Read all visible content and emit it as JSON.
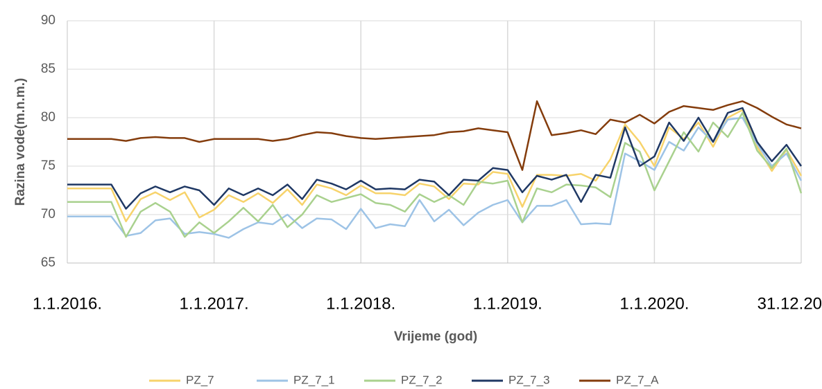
{
  "chart_data": {
    "type": "line",
    "xlabel": "Vrijeme (god)",
    "ylabel": "Razina vode(m.n.m.)",
    "xlim": [
      2016,
      2021
    ],
    "xticks": [
      {
        "value": 2016,
        "label": "1.1.2016."
      },
      {
        "value": 2017,
        "label": "1.1.2017."
      },
      {
        "value": 2018,
        "label": "1.1.2018."
      },
      {
        "value": 2019,
        "label": "1.1.2019."
      },
      {
        "value": 2020,
        "label": "1.1.2020."
      },
      {
        "value": 2021,
        "label": "31.12.2020."
      }
    ],
    "ylim": [
      65,
      90
    ],
    "yticks": [
      65,
      70,
      75,
      80,
      85,
      90
    ],
    "grid": true,
    "legend": "bottom",
    "x": [
      2016,
      2016.1,
      2016.2,
      2016.3,
      2016.4,
      2016.5,
      2016.6,
      2016.7,
      2016.8,
      2016.9,
      2017,
      2017.1,
      2017.2,
      2017.3,
      2017.4,
      2017.5,
      2017.6,
      2017.7,
      2017.8,
      2017.9,
      2018,
      2018.1,
      2018.2,
      2018.3,
      2018.4,
      2018.5,
      2018.6,
      2018.7,
      2018.8,
      2018.9,
      2019,
      2019.1,
      2019.2,
      2019.3,
      2019.4,
      2019.5,
      2019.6,
      2019.7,
      2019.8,
      2019.9,
      2020,
      2020.1,
      2020.2,
      2020.3,
      2020.4,
      2020.5,
      2020.6,
      2020.7,
      2020.8,
      2020.9,
      2021
    ],
    "series": [
      {
        "name": "PZ_7",
        "color": "#f7d36b",
        "values": [
          72.7,
          72.7,
          72.7,
          72.7,
          69.3,
          71.6,
          72.3,
          71.5,
          72.3,
          69.7,
          70.5,
          72.0,
          71.3,
          72.2,
          71.2,
          72.6,
          71.0,
          73.1,
          72.7,
          72.0,
          73.0,
          72.2,
          72.2,
          72.0,
          73.2,
          72.9,
          71.6,
          73.2,
          73.1,
          74.4,
          74.2,
          70.8,
          74.1,
          74.1,
          74.0,
          74.2,
          73.5,
          75.7,
          79.3,
          77.5,
          75.0,
          79.0,
          77.8,
          79.5,
          77.0,
          80.0,
          80.8,
          77.0,
          74.5,
          76.7,
          74.0
        ]
      },
      {
        "name": "PZ_7_1",
        "color": "#9dc3e6",
        "values": [
          69.8,
          69.8,
          69.8,
          69.8,
          67.8,
          68.1,
          69.4,
          69.6,
          68.0,
          68.2,
          68.0,
          67.6,
          68.5,
          69.2,
          69.0,
          70.0,
          68.6,
          69.6,
          69.5,
          68.5,
          70.6,
          68.6,
          69.0,
          68.8,
          71.5,
          69.3,
          70.5,
          68.9,
          70.2,
          71.0,
          71.5,
          69.2,
          70.9,
          70.9,
          71.5,
          69.0,
          69.1,
          69.0,
          76.3,
          75.5,
          74.6,
          77.5,
          76.6,
          79.0,
          77.5,
          79.8,
          80.0,
          77.3,
          75.0,
          76.3,
          73.5
        ]
      },
      {
        "name": "PZ_7_2",
        "color": "#a9d18e",
        "values": [
          71.3,
          71.3,
          71.3,
          71.3,
          67.7,
          70.3,
          71.2,
          70.3,
          67.7,
          69.2,
          68.1,
          69.3,
          70.7,
          69.3,
          71.0,
          68.7,
          70.0,
          72.0,
          71.3,
          71.7,
          72.1,
          71.2,
          71.0,
          70.3,
          72.1,
          71.3,
          72.0,
          71.0,
          73.4,
          73.2,
          73.5,
          69.2,
          72.7,
          72.3,
          73.1,
          73.0,
          72.8,
          71.8,
          77.4,
          76.5,
          72.5,
          75.5,
          78.5,
          76.5,
          79.5,
          78.0,
          80.5,
          76.6,
          74.8,
          76.8,
          72.2
        ]
      },
      {
        "name": "PZ_7_3",
        "color": "#1f3864",
        "values": [
          73.1,
          73.1,
          73.1,
          73.1,
          70.6,
          72.2,
          72.9,
          72.3,
          72.9,
          72.5,
          71.0,
          72.7,
          72.0,
          72.7,
          72.0,
          73.1,
          71.6,
          73.6,
          73.2,
          72.6,
          73.5,
          72.6,
          72.7,
          72.6,
          73.6,
          73.4,
          72.0,
          73.6,
          73.5,
          74.8,
          74.6,
          72.3,
          74.0,
          73.6,
          74.1,
          71.3,
          74.1,
          73.8,
          79.0,
          75.0,
          76.0,
          79.5,
          77.6,
          80.0,
          77.5,
          80.5,
          81.0,
          77.5,
          75.5,
          77.2,
          75.0
        ]
      },
      {
        "name": "PZ_7_A",
        "color": "#843c0c",
        "values": [
          77.8,
          77.8,
          77.8,
          77.8,
          77.6,
          77.9,
          78.0,
          77.9,
          77.9,
          77.5,
          77.8,
          77.8,
          77.8,
          77.8,
          77.6,
          77.8,
          78.2,
          78.5,
          78.4,
          78.1,
          77.9,
          77.8,
          77.9,
          78.0,
          78.1,
          78.2,
          78.5,
          78.6,
          78.9,
          78.7,
          78.5,
          74.6,
          81.7,
          78.2,
          78.4,
          78.7,
          78.3,
          79.8,
          79.5,
          80.3,
          79.4,
          80.6,
          81.2,
          81.0,
          80.8,
          81.3,
          81.7,
          81.0,
          80.1,
          79.3,
          78.9
        ]
      }
    ]
  }
}
